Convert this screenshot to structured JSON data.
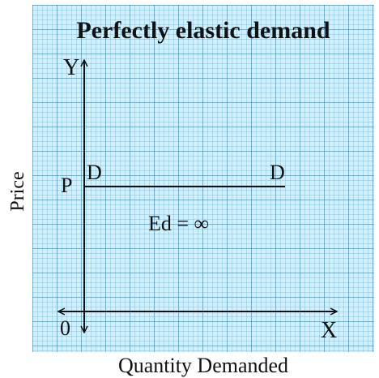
{
  "diagram": {
    "title": "Perfectly elastic demand",
    "y_axis_letter": "Y",
    "x_axis_letter": "X",
    "origin_label": "0",
    "price_point_label": "P",
    "demand_label_left": "D",
    "demand_label_right": "D",
    "elasticity_formula": "Ed = ∞",
    "x_axis_title": "Quantity Demanded",
    "y_axis_title": "Price"
  },
  "colors": {
    "paper_background": "#d2f0fb",
    "grid_line": "#2896d7",
    "ink": "#111111"
  }
}
